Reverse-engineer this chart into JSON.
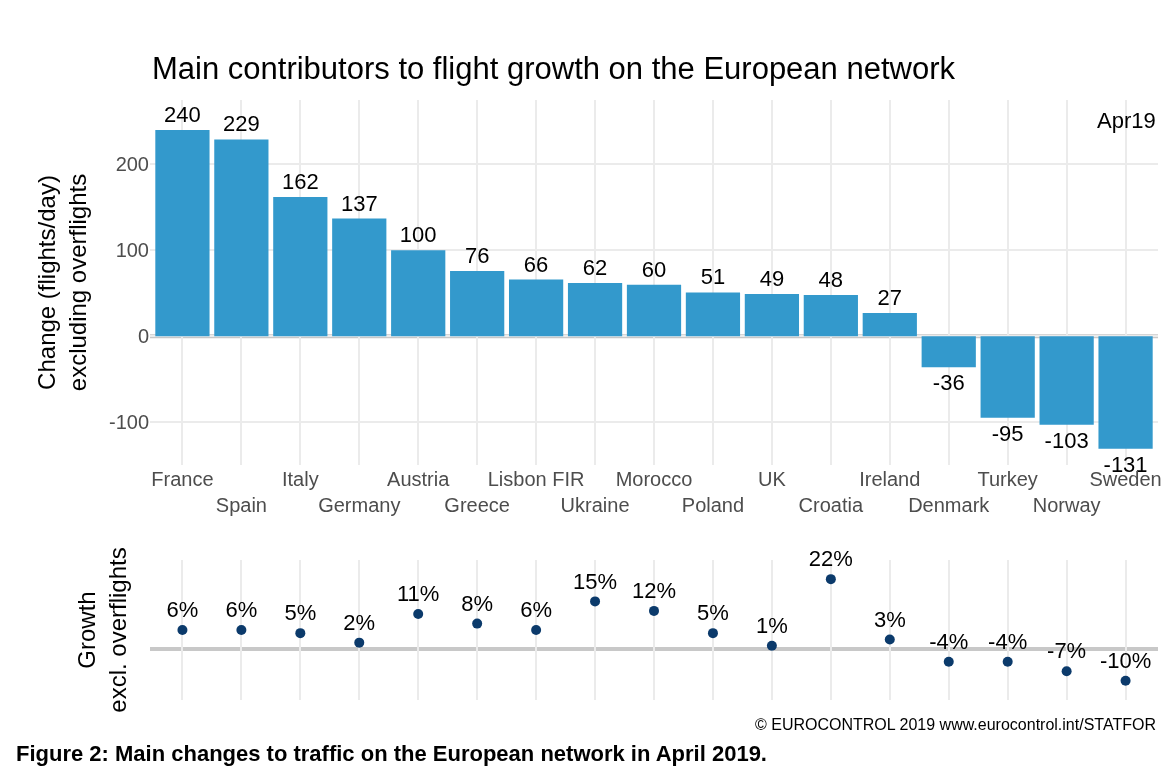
{
  "chart_data": [
    {
      "type": "bar",
      "title": "Main contributors to flight growth on the European network",
      "ylabel": "Change (flights/day)\nexcluding overflights",
      "categories": [
        "France",
        "Spain",
        "Italy",
        "Germany",
        "Austria",
        "Greece",
        "Lisbon FIR",
        "Ukraine",
        "Morocco",
        "Poland",
        "UK",
        "Croatia",
        "Ireland",
        "Denmark",
        "Turkey",
        "Norway",
        "Sweden"
      ],
      "values": [
        240,
        229,
        162,
        137,
        100,
        76,
        66,
        62,
        60,
        51,
        49,
        48,
        27,
        -36,
        -95,
        -103,
        -131
      ],
      "color": "#3399cc",
      "ylim": [
        -150,
        275
      ],
      "yticks": [
        -100,
        0,
        100,
        200
      ],
      "grid": true,
      "data_labels": true,
      "ref_lines": [
        {
          "axis": "y",
          "value": 0,
          "color": "#c8c8c8"
        }
      ],
      "annotations": [
        "Apr19"
      ]
    },
    {
      "type": "scatter",
      "ylabel": "Growth\nexcl. overflights",
      "categories": [
        "France",
        "Spain",
        "Italy",
        "Germany",
        "Austria",
        "Greece",
        "Lisbon FIR",
        "Ukraine",
        "Morocco",
        "Poland",
        "UK",
        "Croatia",
        "Ireland",
        "Denmark",
        "Turkey",
        "Norway",
        "Sweden"
      ],
      "values": [
        6,
        6,
        5,
        2,
        11,
        8,
        6,
        15,
        12,
        5,
        1,
        22,
        3,
        -4,
        -4,
        -7,
        -10
      ],
      "value_labels": [
        "6%",
        "6%",
        "5%",
        "2%",
        "11%",
        "8%",
        "6%",
        "15%",
        "12%",
        "5%",
        "1%",
        "22%",
        "3%",
        "-4%",
        "-4%",
        "-7%",
        "-10%"
      ],
      "color": "#0b3a6b",
      "marker": "circle",
      "ylim": [
        -16,
        28
      ],
      "grid": "x",
      "tick_labels": false,
      "ref_lines": [
        {
          "axis": "y",
          "value": 0,
          "color": "#c8c8c8"
        }
      ],
      "annotations": [
        "© EUROCONTROL 2019 www.eurocontrol.int/STATFOR",
        "Figure 2: Main changes to traffic on the European network in April 2019."
      ]
    }
  ]
}
